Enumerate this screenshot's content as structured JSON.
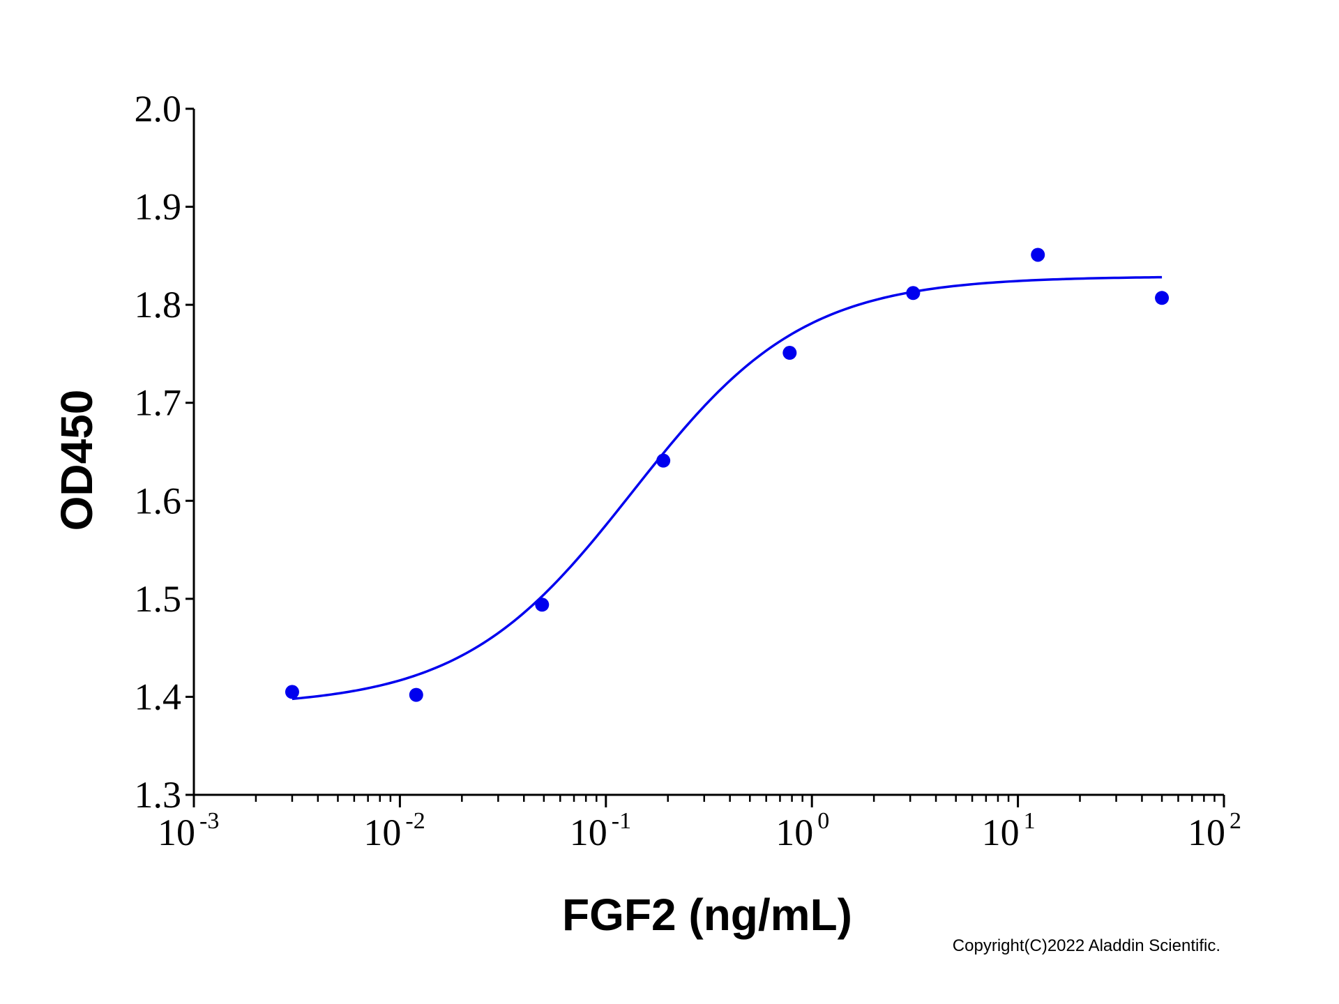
{
  "chart_data": {
    "type": "scatter",
    "title": "",
    "xlabel": "FGF2 (ng/mL)",
    "ylabel": "OD450",
    "x_scale": "log",
    "xlim": [
      0.001,
      100
    ],
    "ylim": [
      1.3,
      2.0
    ],
    "y_ticks": [
      "1.3",
      "1.4",
      "1.5",
      "1.6",
      "1.7",
      "1.8",
      "1.9",
      "2.0"
    ],
    "x_ticks": [
      {
        "base": "10",
        "exp": "-3",
        "value": 0.001
      },
      {
        "base": "10",
        "exp": "-2",
        "value": 0.01
      },
      {
        "base": "10",
        "exp": "-1",
        "value": 0.1
      },
      {
        "base": "10",
        "exp": "0",
        "value": 1
      },
      {
        "base": "10",
        "exp": "1",
        "value": 10
      },
      {
        "base": "10",
        "exp": "2",
        "value": 100
      }
    ],
    "grid": false,
    "legend": "none",
    "series": [
      {
        "points": [
          {
            "x": 0.003,
            "y": 1.405
          },
          {
            "x": 0.012,
            "y": 1.402
          },
          {
            "x": 0.049,
            "y": 1.494
          },
          {
            "x": 0.19,
            "y": 1.641
          },
          {
            "x": 0.78,
            "y": 1.751
          },
          {
            "x": 3.1,
            "y": 1.812
          },
          {
            "x": 12.5,
            "y": 1.851
          },
          {
            "x": 50,
            "y": 1.807
          }
        ],
        "fit": {
          "model": "4PL",
          "bottom": 1.39,
          "top": 1.829,
          "ec50": 0.135,
          "hill": 1.05,
          "x_range": [
            0.003,
            50
          ]
        },
        "color": "#0000ee"
      }
    ],
    "annotations": [
      "Copyright(C)2022 Aladdin Scientific."
    ]
  }
}
